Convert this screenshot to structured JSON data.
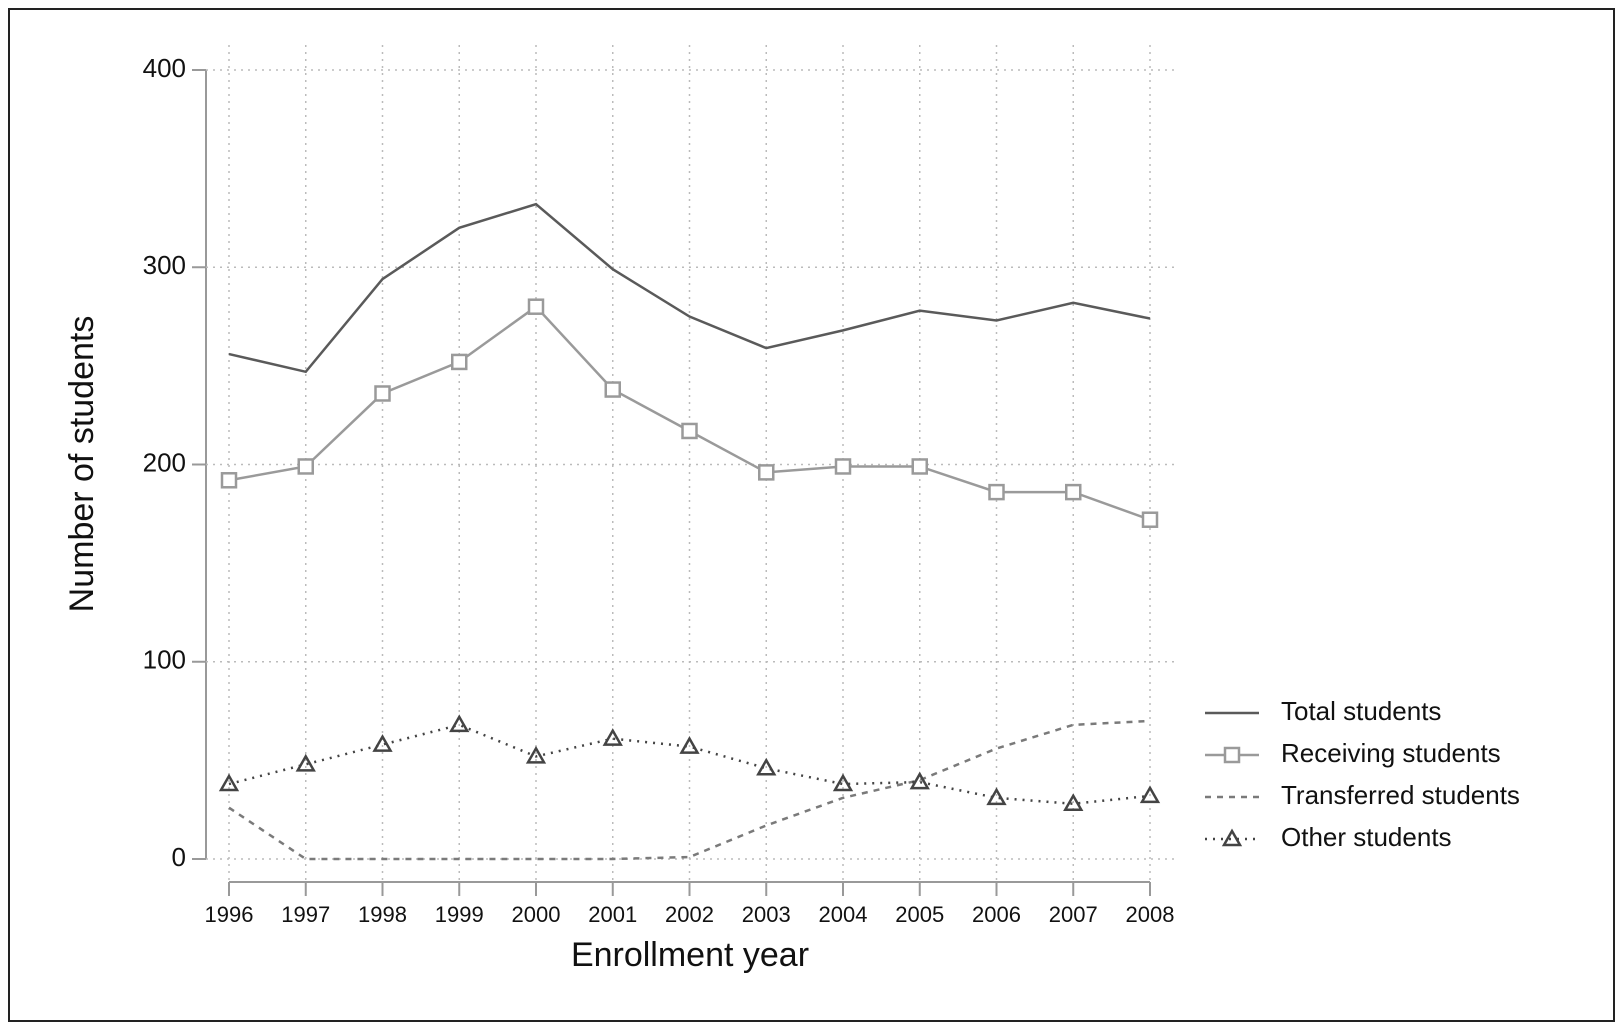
{
  "chart_data": {
    "type": "line",
    "x_label": "Enrollment year",
    "y_label": "Number of students",
    "x": [
      1996,
      1997,
      1998,
      1999,
      2000,
      2001,
      2002,
      2003,
      2004,
      2005,
      2006,
      2007,
      2008
    ],
    "xlim": [
      1996,
      2008
    ],
    "xticks": [
      1996,
      1997,
      1998,
      1999,
      2000,
      2001,
      2002,
      2003,
      2004,
      2005,
      2006,
      2007,
      2008
    ],
    "ylim": [
      0,
      400
    ],
    "yticks": [
      0,
      100,
      200,
      300,
      400
    ],
    "grid": true,
    "legend": "right",
    "series": [
      {
        "name": "Total students",
        "color": "#5a5a5a",
        "dash": "solid",
        "marker": "none",
        "values": [
          256,
          247,
          294,
          320,
          332,
          299,
          275,
          259,
          268,
          278,
          273,
          282,
          274
        ]
      },
      {
        "name": "Receiving students",
        "color": "#9a9a9a",
        "dash": "solid",
        "marker": "square",
        "values": [
          192,
          199,
          236,
          252,
          280,
          238,
          217,
          196,
          199,
          199,
          186,
          186,
          172
        ]
      },
      {
        "name": "Transferred students",
        "color": "#7a7a7a",
        "dash": "dashed",
        "marker": "none",
        "values": [
          26,
          0,
          0,
          0,
          0,
          0,
          1,
          17,
          31,
          40,
          56,
          68,
          70
        ]
      },
      {
        "name": "Other students",
        "color": "#444444",
        "dash": "dotted",
        "marker": "triangle",
        "values": [
          38,
          48,
          58,
          68,
          52,
          61,
          57,
          46,
          38,
          39,
          31,
          28,
          32
        ]
      }
    ]
  }
}
